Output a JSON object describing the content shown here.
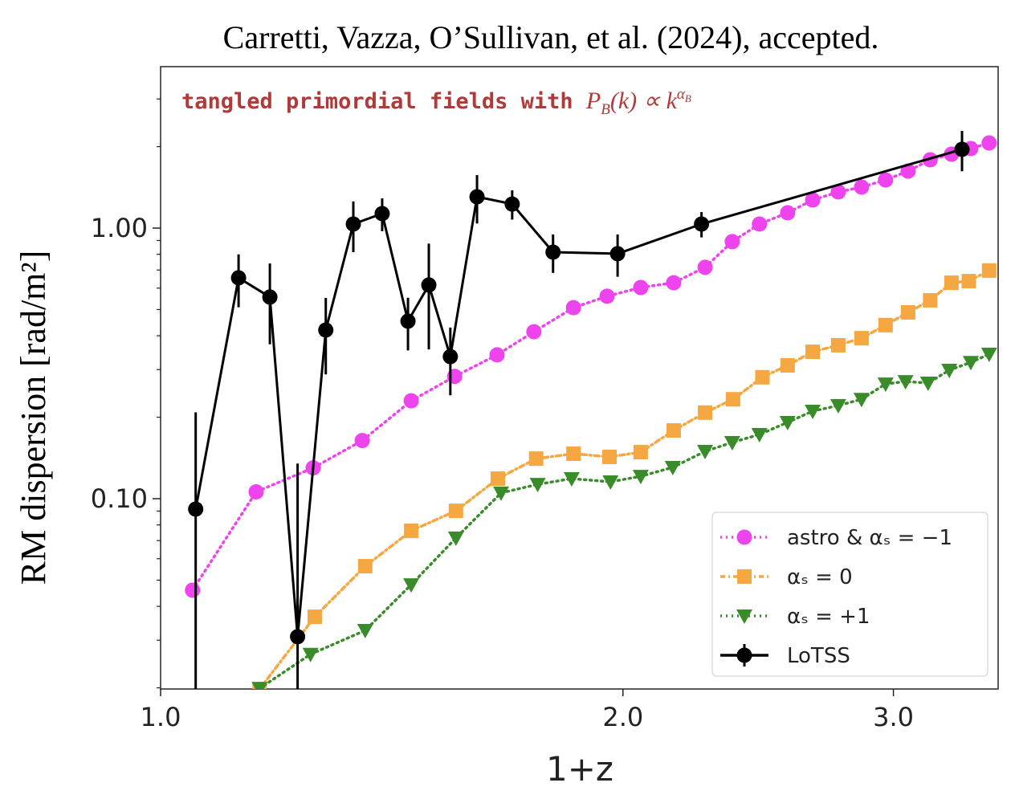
{
  "chart_data": {
    "type": "line",
    "title": "Carretti, Vazza, O’Sullivan, et al. (2024), accepted.",
    "annotation": [
      "tangled primordial fields with ",
      "P",
      "B",
      "(k) ∝ k",
      "α",
      "B"
    ],
    "xlabel": "1+z",
    "ylabel": "RM dispersion [rad/m²]",
    "xscale": "log",
    "yscale": "log",
    "xlim": [
      1.0,
      3.51
    ],
    "ylim": [
      0.0198,
      3.95
    ],
    "xticks": [
      {
        "value": 1.0,
        "label": "1.0"
      },
      {
        "value": 2.0,
        "label": "2.0"
      },
      {
        "value": 3.0,
        "label": "3.0"
      }
    ],
    "yticks": [
      {
        "value": 0.1,
        "label": "0.10"
      },
      {
        "value": 1.0,
        "label": "1.00"
      }
    ],
    "yminor_ticks": [
      0.02,
      0.03,
      0.04,
      0.05,
      0.06,
      0.07,
      0.08,
      0.09,
      0.2,
      0.3,
      0.4,
      0.5,
      0.6,
      0.7,
      0.8,
      0.9,
      2,
      3
    ],
    "legend": "lower right",
    "series": [
      {
        "name": "astro & αₛ = −1",
        "color": "#ee44ee",
        "marker": "circle",
        "linestyle": "dotted",
        "x": [
          1.049,
          1.154,
          1.257,
          1.353,
          1.456,
          1.554,
          1.656,
          1.75,
          1.857,
          1.953,
          2.054,
          2.158,
          2.262,
          2.356,
          2.454,
          2.56,
          2.658,
          2.762,
          2.86,
          2.965,
          3.067,
          3.17,
          3.273,
          3.369,
          3.463
        ],
        "values": [
          0.0459,
          0.106,
          0.13,
          0.164,
          0.23,
          0.283,
          0.34,
          0.414,
          0.508,
          0.56,
          0.603,
          0.628,
          0.716,
          0.891,
          1.035,
          1.139,
          1.27,
          1.36,
          1.417,
          1.506,
          1.624,
          1.788,
          1.875,
          1.967,
          2.063
        ]
      },
      {
        "name": "αₛ = 0",
        "color": "#f5a742",
        "marker": "square",
        "linestyle": "dashdot",
        "x": [
          1.16,
          1.26,
          1.359,
          1.456,
          1.557,
          1.658,
          1.756,
          1.857,
          1.96,
          2.054,
          2.158,
          2.262,
          2.359,
          2.465,
          2.56,
          2.658,
          2.762,
          2.86,
          2.965,
          3.067,
          3.17,
          3.273,
          3.359,
          3.463
        ],
        "values": [
          0.0198,
          0.0366,
          0.0563,
          0.0761,
          0.0902,
          0.1186,
          0.1406,
          0.1466,
          0.1427,
          0.1486,
          0.1787,
          0.208,
          0.233,
          0.281,
          0.311,
          0.349,
          0.369,
          0.392,
          0.438,
          0.488,
          0.541,
          0.628,
          0.637,
          0.697
        ]
      },
      {
        "name": "αₛ = +1",
        "color": "#3a8c2a",
        "marker": "triangle_down",
        "linestyle": "dotted",
        "x": [
          1.16,
          1.252,
          1.359,
          1.456,
          1.557,
          1.666,
          1.76,
          1.852,
          1.963,
          2.054,
          2.155,
          2.262,
          2.356,
          2.454,
          2.56,
          2.658,
          2.762,
          2.86,
          2.965,
          3.055,
          3.16,
          3.262,
          3.369,
          3.463
        ],
        "values": [
          0.0199,
          0.0266,
          0.0326,
          0.0481,
          0.0716,
          0.105,
          0.113,
          0.1186,
          0.1154,
          0.121,
          0.1305,
          0.1496,
          0.1614,
          0.1727,
          0.1914,
          0.2106,
          0.2209,
          0.233,
          0.2655,
          0.271,
          0.2675,
          0.2985,
          0.319,
          0.342
        ]
      },
      {
        "name": "LoTSS",
        "color": "#000000",
        "marker": "circle",
        "linestyle": "solid",
        "x": [
          1.054,
          1.124,
          1.178,
          1.228,
          1.281,
          1.335,
          1.394,
          1.449,
          1.495,
          1.544,
          1.607,
          1.694,
          1.801,
          1.984,
          2.25,
          3.325
        ],
        "values": [
          0.0915,
          0.655,
          0.556,
          0.0309,
          0.42,
          1.035,
          1.131,
          0.453,
          0.616,
          0.335,
          1.305,
          1.227,
          0.815,
          0.804,
          1.035,
          1.954
        ],
        "errors": [
          0.117,
          0.145,
          0.184,
          0.104,
          0.132,
          0.22,
          0.157,
          0.1,
          0.26,
          0.094,
          0.265,
          0.152,
          0.132,
          0.143,
          0.111,
          0.332
        ]
      }
    ]
  }
}
